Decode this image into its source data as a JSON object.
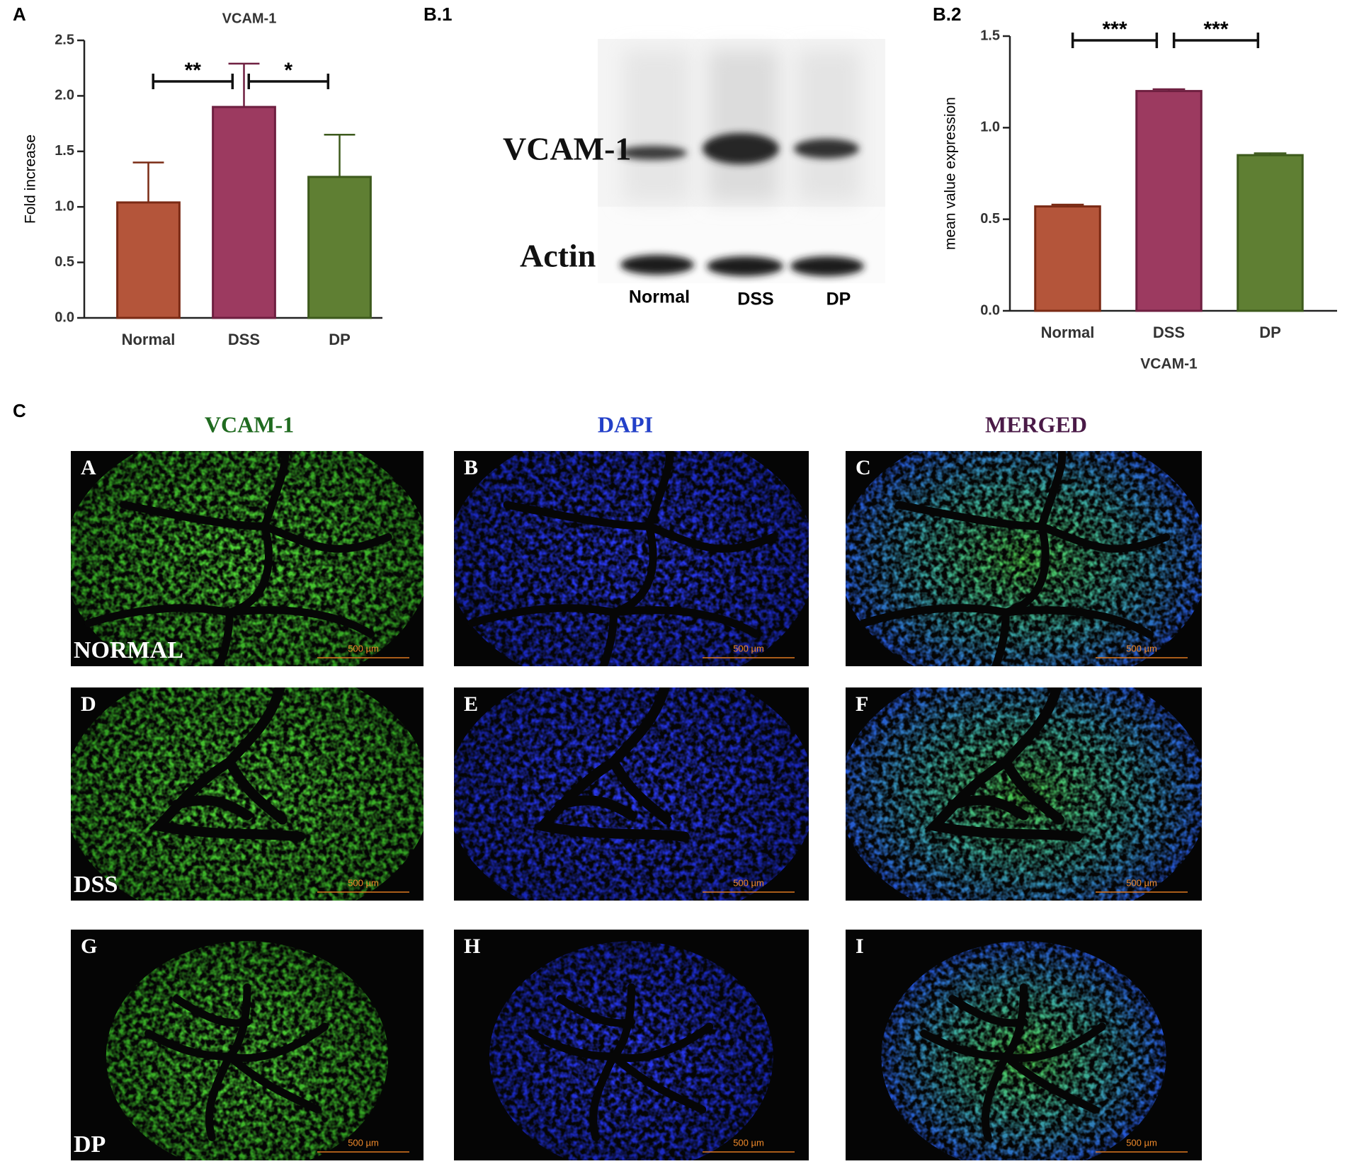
{
  "chart_data": [
    {
      "type": "bar",
      "panel": "A",
      "title": "VCAM-1",
      "ylabel": "Fold increase",
      "categories": [
        "Normal",
        "DSS",
        "DP"
      ],
      "values": [
        1.04,
        1.9,
        1.27
      ],
      "errors": [
        0.36,
        0.39,
        0.38
      ],
      "colors": [
        "#b4553a",
        "#9c3a60",
        "#5f7f33"
      ],
      "edge_colors": [
        "#7a2a14",
        "#6e1f40",
        "#3d5a1c"
      ],
      "ylim": [
        0,
        2.5
      ],
      "yticks": [
        {
          "value": 0,
          "label": "0.0"
        },
        0.5,
        {
          "value": 1,
          "label": "1.0"
        },
        1.5,
        {
          "value": 2,
          "label": "2.0"
        },
        2.5
      ],
      "annotations": [
        {
          "text": "**",
          "between": [
            "Normal",
            "DSS"
          ]
        },
        {
          "text": "*",
          "between": [
            "DSS",
            "DP"
          ]
        }
      ]
    },
    {
      "type": "bar",
      "panel": "B.2",
      "ylabel": "mean value expression",
      "xlabel": "VCAM-1",
      "categories": [
        "Normal",
        "DSS",
        "DP"
      ],
      "values": [
        0.57,
        1.2,
        0.85
      ],
      "errors": [
        0.01,
        0.01,
        0.01
      ],
      "colors": [
        "#b4553a",
        "#9c3a60",
        "#5f7f33"
      ],
      "edge_colors": [
        "#7a2a14",
        "#6e1f40",
        "#3d5a1c"
      ],
      "ylim": [
        0,
        1.5
      ],
      "yticks": [
        {
          "value": 0,
          "label": "0.0"
        },
        0.5,
        {
          "value": 1,
          "label": "1.0"
        },
        1.5
      ],
      "annotations": [
        {
          "text": "***",
          "between": [
            "Normal",
            "DSS"
          ]
        },
        {
          "text": "***",
          "between": [
            "DSS",
            "DP"
          ]
        }
      ]
    }
  ],
  "blot": {
    "panel": "B.1",
    "proteins": [
      "VCAM-1",
      "Actin"
    ],
    "lanes": [
      "Normal",
      "DSS",
      "DP"
    ]
  },
  "micrographs": {
    "panel": "C",
    "columns": [
      "VCAM-1",
      "DAPI",
      "MERGED"
    ],
    "rows": [
      "NORMAL",
      "DSS",
      "DP"
    ],
    "letters": [
      "A",
      "B",
      "C",
      "D",
      "E",
      "F",
      "G",
      "H",
      "I"
    ],
    "scale_bar": "500 µm"
  }
}
